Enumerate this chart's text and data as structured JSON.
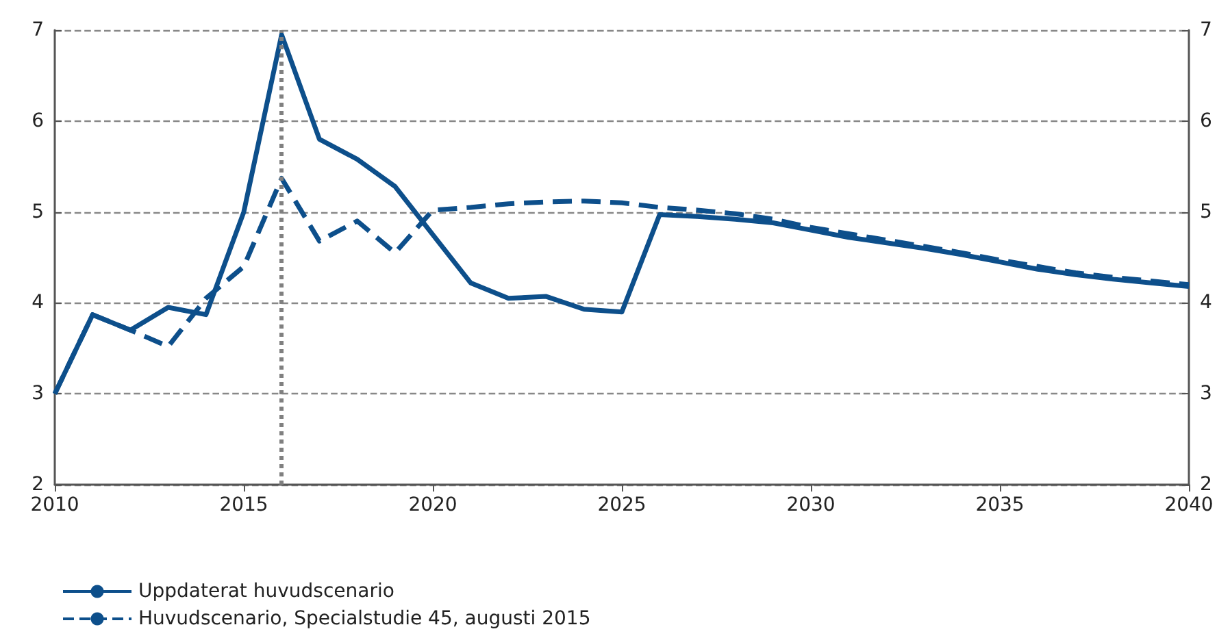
{
  "chart_data": {
    "type": "line",
    "x": [
      2010,
      2011,
      2012,
      2013,
      2014,
      2015,
      2016,
      2017,
      2018,
      2019,
      2020,
      2021,
      2022,
      2023,
      2024,
      2025,
      2026,
      2027,
      2028,
      2029,
      2030,
      2031,
      2032,
      2033,
      2034,
      2035,
      2036,
      2037,
      2038,
      2039,
      2040
    ],
    "series": [
      {
        "name": "Uppdaterat huvudscenario",
        "color": "#0d4f8b",
        "line_style": "solid",
        "values": [
          3.0,
          3.87,
          3.7,
          3.95,
          3.87,
          5.0,
          6.95,
          5.8,
          5.58,
          5.28,
          4.75,
          4.22,
          4.05,
          4.07,
          3.93,
          3.9,
          4.97,
          4.95,
          4.92,
          4.88,
          4.8,
          4.72,
          4.66,
          4.6,
          4.53,
          4.45,
          4.37,
          4.31,
          4.26,
          4.22,
          4.18
        ]
      },
      {
        "name": "Huvudscenario, Specialstudie 45, augusti 2015",
        "color": "#0d4f8b",
        "line_style": "dashed",
        "values": [
          3.0,
          3.87,
          3.7,
          3.52,
          4.05,
          4.4,
          5.37,
          4.68,
          4.9,
          4.55,
          5.02,
          5.05,
          5.09,
          5.11,
          5.12,
          5.1,
          5.05,
          5.02,
          4.98,
          4.92,
          4.83,
          4.76,
          4.69,
          4.62,
          4.55,
          4.47,
          4.4,
          4.33,
          4.28,
          4.24,
          4.2
        ]
      }
    ],
    "xlim": [
      2010,
      2040
    ],
    "xticks": [
      2010,
      2015,
      2020,
      2025,
      2030,
      2035,
      2040
    ],
    "ylim": [
      2,
      7
    ],
    "yticks": [
      2,
      3,
      4,
      5,
      6,
      7
    ],
    "y2lim": [
      2,
      7
    ],
    "y2ticks": [
      2,
      3,
      4,
      5,
      6,
      7
    ],
    "ref_lines": [
      {
        "axis": "x",
        "value": 2016,
        "color": "#808080",
        "line_style": "dotted"
      }
    ],
    "grid": "y",
    "legend": "bottom left",
    "marker": "none"
  }
}
